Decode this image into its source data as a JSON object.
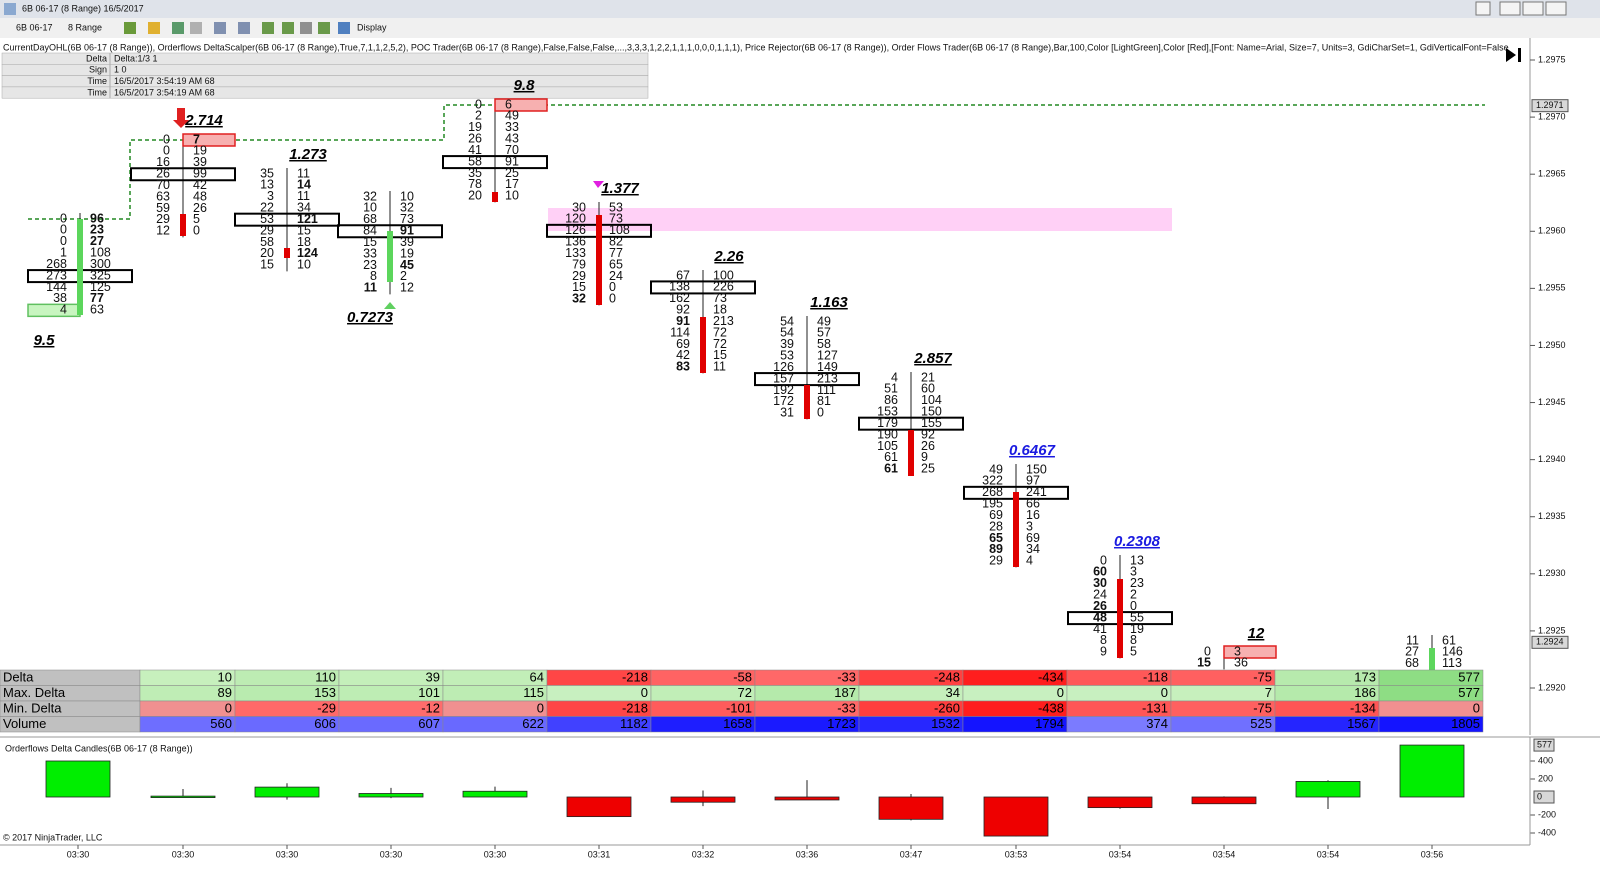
{
  "window": {
    "title": "6B 06-17 (8 Range)  16/5/2017"
  },
  "toolbar": {
    "instrument": "6B 06-17",
    "period": "8 Range",
    "display": "Display"
  },
  "indicator_label": "CurrentDayOHL(6B 06-17 (8 Range)), Orderflows DeltaScalper(6B 06-17 (8 Range),True,7,1,1,2,5,2), POC Trader(6B 06-17 (8 Range),False,False,False,...,3,3,3,1,2,2,1,1,1,0,0,0,1,1,1), Price Rejector(6B 06-17 (8 Range)), Order Flows Trader(6B 06-17 (8 Range),Bar,100,Color [LightGreen],Color [Red],[Font: Name=Arial, Size=7, Units=3, GdiCharSet=1, GdiVerticalFont=False",
  "info_table": {
    "rows": [
      [
        "Delta",
        "Delta:1/3 1"
      ],
      [
        "Sign",
        "1 0"
      ],
      [
        "Time",
        "16/5/2017 3:54:19 AM 68"
      ],
      [
        "Time",
        "16/5/2017 3:54:19 AM 68"
      ]
    ]
  },
  "footprint": {
    "columns": [
      {
        "label": 9.5,
        "rows": [
          [
            0,
            96
          ],
          [
            0,
            23
          ],
          [
            0,
            27
          ],
          [
            1,
            108
          ],
          [
            268,
            300
          ],
          [
            273,
            325
          ],
          [
            144,
            125
          ],
          [
            38,
            77
          ],
          [
            4,
            63
          ]
        ]
      },
      {
        "label": 2.714,
        "rows": [
          [
            0,
            7
          ],
          [
            0,
            19
          ],
          [
            16,
            39
          ],
          [
            26,
            99
          ],
          [
            70,
            42
          ],
          [
            63,
            48
          ],
          [
            59,
            26
          ],
          [
            29,
            5
          ],
          [
            12,
            0
          ]
        ]
      },
      {
        "label": 1.273,
        "rows": [
          [
            35,
            11
          ],
          [
            13,
            14
          ],
          [
            3,
            11
          ],
          [
            22,
            34
          ],
          [
            53,
            121
          ],
          [
            29,
            15
          ],
          [
            58,
            18
          ],
          [
            20,
            124
          ],
          [
            15,
            10
          ]
        ]
      },
      {
        "label": 0.7273,
        "rows": [
          [
            32,
            10
          ],
          [
            10,
            32
          ],
          [
            68,
            73
          ],
          [
            84,
            91
          ],
          [
            15,
            39
          ],
          [
            33,
            19
          ],
          [
            23,
            45
          ],
          [
            8,
            2
          ],
          [
            11,
            12
          ]
        ]
      },
      {
        "label": 9.8,
        "rows": [
          [
            0,
            6
          ],
          [
            2,
            49
          ],
          [
            19,
            33
          ],
          [
            26,
            43
          ],
          [
            41,
            70
          ],
          [
            58,
            91
          ],
          [
            35,
            25
          ],
          [
            78,
            17
          ],
          [
            20,
            10
          ]
        ]
      },
      {
        "label": 1.377,
        "rows": [
          [
            30,
            53
          ],
          [
            120,
            73
          ],
          [
            126,
            108
          ],
          [
            136,
            82
          ],
          [
            133,
            77
          ],
          [
            79,
            65
          ],
          [
            29,
            24
          ],
          [
            15,
            0
          ],
          [
            32,
            0
          ]
        ]
      },
      {
        "label": 2.26,
        "rows": [
          [
            67,
            100
          ],
          [
            138,
            226
          ],
          [
            162,
            73
          ],
          [
            92,
            18
          ],
          [
            91,
            213
          ],
          [
            114,
            72
          ],
          [
            69,
            72
          ],
          [
            42,
            15
          ],
          [
            83,
            11
          ]
        ]
      },
      {
        "label": 1.163,
        "rows": [
          [
            54,
            49
          ],
          [
            54,
            57
          ],
          [
            39,
            58
          ],
          [
            53,
            127
          ],
          [
            126,
            149
          ],
          [
            157,
            213
          ],
          [
            192,
            111
          ],
          [
            172,
            81
          ],
          [
            31,
            0
          ]
        ]
      },
      {
        "label": 2.857,
        "rows": [
          [
            4,
            21
          ],
          [
            51,
            60
          ],
          [
            86,
            104
          ],
          [
            153,
            150
          ],
          [
            179,
            155
          ],
          [
            190,
            92
          ],
          [
            105,
            26
          ],
          [
            61,
            9
          ],
          [
            61,
            25
          ]
        ]
      },
      {
        "label": 0.6467,
        "rows": [
          [
            49,
            150
          ],
          [
            322,
            97
          ],
          [
            268,
            241
          ],
          [
            195,
            66
          ],
          [
            69,
            16
          ],
          [
            28,
            3
          ],
          [
            65,
            69
          ],
          [
            89,
            34
          ],
          [
            29,
            4
          ]
        ]
      },
      {
        "label": 0.2308,
        "rows": [
          [
            0,
            13
          ],
          [
            60,
            3
          ],
          [
            30,
            23
          ],
          [
            24,
            2
          ],
          [
            26,
            0
          ],
          [
            48,
            55
          ],
          [
            41,
            19
          ],
          [
            8,
            8
          ],
          [
            9,
            5
          ]
        ]
      },
      {
        "label": 12,
        "rows": [
          [
            0,
            3
          ],
          [
            15,
            36
          ]
        ]
      },
      {
        "rows": [
          [
            11,
            61
          ],
          [
            27,
            146
          ],
          [
            68,
            113
          ]
        ]
      }
    ]
  },
  "price_axis": {
    "ticks": [
      1.2975,
      {
        "value": 1.297,
        "label": "1.2970"
      },
      1.2965,
      {
        "value": 1.296,
        "label": "1.2960"
      },
      1.2955,
      {
        "value": 1.295,
        "label": "1.2950"
      },
      1.2945,
      {
        "value": 1.294,
        "label": "1.2940"
      },
      1.2935,
      {
        "value": 1.293,
        "label": "1.2930"
      },
      1.2925,
      {
        "value": 1.292,
        "label": "1.2920"
      }
    ],
    "markers": [
      1.2971,
      1.2924
    ]
  },
  "stats_table": {
    "rows": [
      {
        "name": "Delta",
        "values": [
          10,
          110,
          39,
          64,
          -218,
          -58,
          -33,
          -248,
          -434,
          -118,
          -75,
          173,
          577
        ]
      },
      {
        "name": "Max. Delta",
        "values": [
          89,
          153,
          101,
          115,
          0,
          72,
          187,
          34,
          0,
          0,
          7,
          186,
          577
        ]
      },
      {
        "name": "Min. Delta",
        "values": [
          0,
          -29,
          -12,
          0,
          -218,
          -101,
          -33,
          -260,
          -438,
          -131,
          -75,
          -134,
          0
        ]
      },
      {
        "name": "Volume",
        "values": [
          560,
          606,
          607,
          622,
          1182,
          1658,
          1723,
          1532,
          1794,
          374,
          525,
          1567,
          1805
        ]
      }
    ]
  },
  "delta_panel": {
    "title": "Orderflows Delta Candles(6B 06-17 (8 Range))",
    "first_bar": {
      "delta": 400,
      "max_delta": 400,
      "min_delta": 0
    },
    "ticks": [
      400,
      200,
      -200,
      -400
    ],
    "markers": [
      577,
      0
    ]
  },
  "time_axis": {
    "labels": [
      "03:30",
      "03:30",
      "03:30",
      "03:30",
      "03:30",
      "03:31",
      "03:32",
      "03:36",
      "03:47",
      "03:53",
      "03:54",
      "03:54",
      "03:54",
      "03:56"
    ]
  },
  "copyright": "© 2017 NinjaTrader, LLC"
}
